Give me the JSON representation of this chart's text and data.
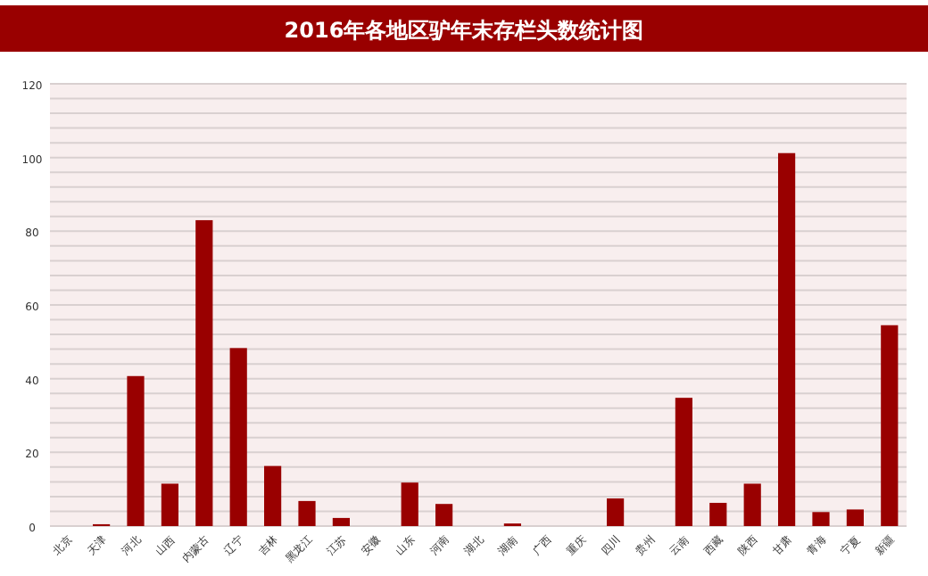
{
  "chart_data": {
    "type": "bar",
    "title": "2016年各地区驴年末存栏头数统计图",
    "categories": [
      "北京",
      "天津",
      "河北",
      "山西",
      "内蒙古",
      "辽宁",
      "吉林",
      "黑龙江",
      "江苏",
      "安徽",
      "山东",
      "河南",
      "湖北",
      "湖南",
      "广西",
      "重庆",
      "四川",
      "贵州",
      "云南",
      "西藏",
      "陕西",
      "甘肃",
      "青海",
      "宁夏",
      "新疆"
    ],
    "values": [
      0,
      0.5,
      40.7,
      11.5,
      83,
      48.3,
      16.3,
      6.8,
      2.2,
      0,
      11.8,
      6,
      0,
      0.7,
      0,
      0,
      7.5,
      0,
      34.8,
      6.3,
      11.5,
      101.2,
      3.8,
      4.5,
      54.5
    ],
    "color": "#990000",
    "ylim": [
      0,
      120
    ],
    "yticks": [
      0,
      {
        "value": 4,
        "label": null
      },
      {
        "value": 8,
        "label": null
      },
      {
        "value": 12,
        "label": null
      },
      {
        "value": 16,
        "label": null
      },
      20,
      {
        "value": 24,
        "label": null
      },
      {
        "value": 28,
        "label": null
      },
      {
        "value": 32,
        "label": null
      },
      {
        "value": 36,
        "label": null
      },
      40,
      {
        "value": 44,
        "label": null
      },
      {
        "value": 48,
        "label": null
      },
      {
        "value": 52,
        "label": null
      },
      {
        "value": 56,
        "label": null
      },
      60,
      {
        "value": 64,
        "label": null
      },
      {
        "value": 68,
        "label": null
      },
      {
        "value": 72,
        "label": null
      },
      {
        "value": 76,
        "label": null
      },
      80,
      {
        "value": 84,
        "label": null
      },
      {
        "value": 88,
        "label": null
      },
      {
        "value": 92,
        "label": null
      },
      {
        "value": 96,
        "label": null
      },
      100,
      {
        "value": 104,
        "label": null
      },
      {
        "value": 108,
        "label": null
      },
      {
        "value": 112,
        "label": null
      },
      {
        "value": 116,
        "label": null
      },
      120
    ],
    "grid": "y"
  }
}
